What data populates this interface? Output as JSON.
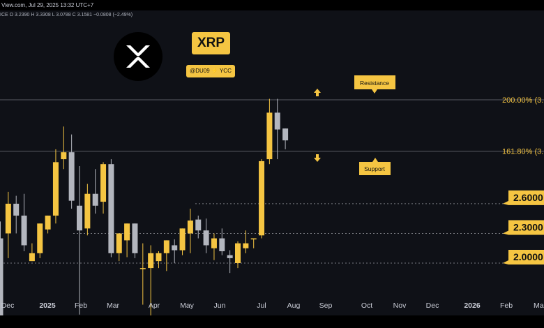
{
  "header": {
    "source": "View.com, Jul 29, 2025 13:32 UTC+7",
    "ohlc": "ICE O 3.2390 H 3.3308 L 3.0788 C 3.1581 −0.0808 (−2.49%)"
  },
  "branding": {
    "title": "XRP",
    "handle": "@DU09 ⚡ YCC",
    "logo_icon": "xrp-logo-icon"
  },
  "colors": {
    "up": "#f5c542",
    "down": "#b3b6be",
    "background": "#0f1117",
    "accent": "#f5c542"
  },
  "chart_data": {
    "type": "candlestick",
    "interval": "weekly",
    "price_axis_range": [
      1.35,
      3.85
    ],
    "x_ticks": [
      "Dec",
      "2025",
      "Feb",
      "Mar",
      "Apr",
      "May",
      "Jun",
      "Jul",
      "Aug",
      "Sep",
      "Oct",
      "Nov",
      "Dec",
      "2026",
      "Feb",
      "Mar"
    ],
    "candles": [
      {
        "o": 2.25,
        "h": 2.42,
        "l": 1.45,
        "c": 1.45
      },
      {
        "o": 2.3,
        "h": 2.72,
        "l": 2.05,
        "c": 2.6
      },
      {
        "o": 2.6,
        "h": 2.68,
        "l": 2.3,
        "c": 2.48
      },
      {
        "o": 2.48,
        "h": 2.7,
        "l": 2.12,
        "c": 2.18
      },
      {
        "o": 2.02,
        "h": 2.2,
        "l": 2.02,
        "c": 2.1
      },
      {
        "o": 2.1,
        "h": 2.4,
        "l": 2.05,
        "c": 2.4
      },
      {
        "o": 2.34,
        "h": 2.48,
        "l": 2.3,
        "c": 2.48
      },
      {
        "o": 2.48,
        "h": 3.15,
        "l": 2.4,
        "c": 3.02
      },
      {
        "o": 3.05,
        "h": 3.38,
        "l": 2.95,
        "c": 3.12
      },
      {
        "o": 3.12,
        "h": 3.3,
        "l": 2.55,
        "c": 2.63
      },
      {
        "o": 2.58,
        "h": 2.98,
        "l": 1.48,
        "c": 2.33
      },
      {
        "o": 2.35,
        "h": 2.8,
        "l": 2.28,
        "c": 2.7
      },
      {
        "o": 2.7,
        "h": 2.95,
        "l": 2.5,
        "c": 2.58
      },
      {
        "o": 2.62,
        "h": 3.02,
        "l": 2.5,
        "c": 3.0
      },
      {
        "o": 3.0,
        "h": 3.05,
        "l": 2.06,
        "c": 2.1
      },
      {
        "o": 2.1,
        "h": 2.3,
        "l": 2.02,
        "c": 2.3
      },
      {
        "o": 2.23,
        "h": 2.4,
        "l": 2.06,
        "c": 2.4
      },
      {
        "o": 2.4,
        "h": 2.4,
        "l": 2.05,
        "c": 2.1
      },
      {
        "o": 1.95,
        "h": 2.2,
        "l": 1.58,
        "c": 1.95
      },
      {
        "o": 1.95,
        "h": 2.18,
        "l": 1.45,
        "c": 2.1
      },
      {
        "o": 2.02,
        "h": 2.12,
        "l": 1.95,
        "c": 2.1
      },
      {
        "o": 2.1,
        "h": 2.23,
        "l": 1.92,
        "c": 2.23
      },
      {
        "o": 2.18,
        "h": 2.24,
        "l": 2.0,
        "c": 2.13
      },
      {
        "o": 2.13,
        "h": 2.35,
        "l": 2.08,
        "c": 2.35
      },
      {
        "o": 2.3,
        "h": 2.55,
        "l": 2.1,
        "c": 2.43
      },
      {
        "o": 2.44,
        "h": 2.48,
        "l": 2.25,
        "c": 2.33
      },
      {
        "o": 2.33,
        "h": 2.45,
        "l": 2.1,
        "c": 2.18
      },
      {
        "o": 2.15,
        "h": 2.3,
        "l": 2.03,
        "c": 2.25
      },
      {
        "o": 2.25,
        "h": 2.35,
        "l": 2.08,
        "c": 2.12
      },
      {
        "o": 2.08,
        "h": 2.13,
        "l": 1.9,
        "c": 2.05
      },
      {
        "o": 2.0,
        "h": 2.22,
        "l": 1.95,
        "c": 2.2
      },
      {
        "o": 2.15,
        "h": 2.33,
        "l": 2.1,
        "c": 2.2
      },
      {
        "o": 2.25,
        "h": 2.25,
        "l": 2.15,
        "c": 2.25
      },
      {
        "o": 2.28,
        "h": 3.05,
        "l": 2.25,
        "c": 3.03
      },
      {
        "o": 3.05,
        "h": 3.66,
        "l": 3.0,
        "c": 3.52
      },
      {
        "o": 3.52,
        "h": 3.66,
        "l": 3.05,
        "c": 3.35
      },
      {
        "o": 3.36,
        "h": 3.36,
        "l": 3.15,
        "c": 3.24
      }
    ],
    "levels": [
      {
        "price": 3.65,
        "label": "200.00% (3.",
        "style": "fib"
      },
      {
        "price": 3.13,
        "label": "161.80% (3.",
        "style": "fib"
      },
      {
        "price": 2.6,
        "label": "2.6000",
        "style": "support"
      },
      {
        "price": 2.3,
        "label": "2.3000",
        "style": "support"
      },
      {
        "price": 2.0,
        "label": "2.0000",
        "style": "support"
      }
    ],
    "annotations": [
      {
        "label": "Resistance",
        "direction": "up"
      },
      {
        "label": "Support",
        "direction": "down"
      }
    ]
  }
}
